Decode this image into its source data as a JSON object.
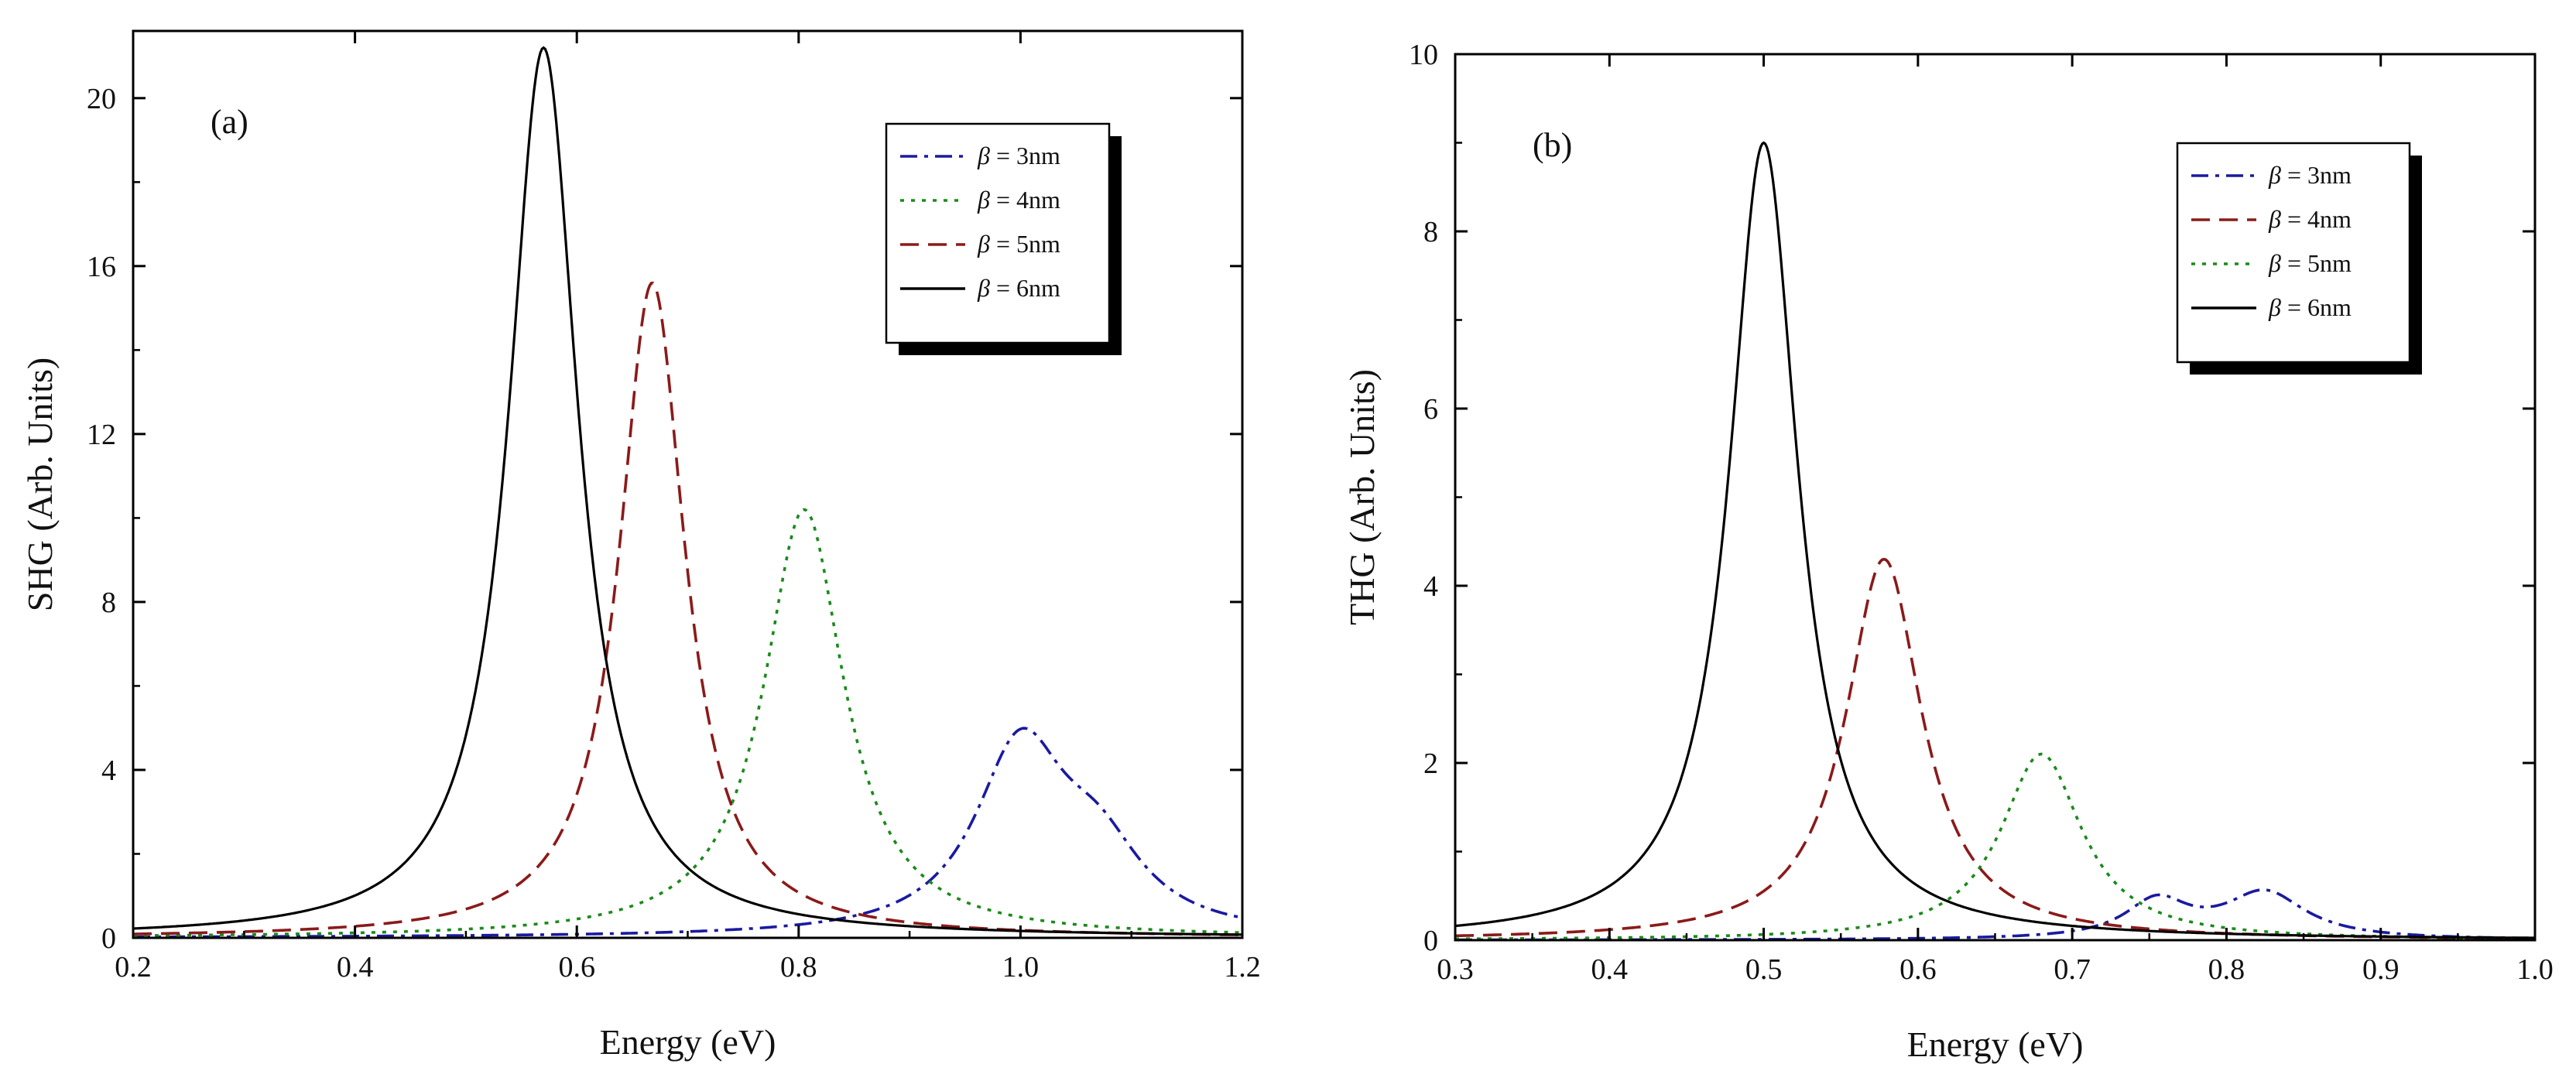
{
  "chart_data": [
    {
      "type": "line",
      "panel_label": "(a)",
      "xlabel": "Energy (eV)",
      "ylabel": "SHG (Arb. Units)",
      "xlim": [
        0.2,
        1.2
      ],
      "ylim": [
        0,
        21.6
      ],
      "xticks": [
        0.2,
        0.4,
        0.6,
        0.8,
        1.0,
        1.2
      ],
      "xtick_labels": [
        "0.2",
        "0.4",
        "0.6",
        "0.8",
        "1.0",
        "1.2"
      ],
      "yticks": [
        0,
        4,
        8,
        12,
        16,
        20
      ],
      "ytick_labels": [
        "0",
        "4",
        "8",
        "12",
        "16",
        "20"
      ],
      "grid": false,
      "legend_position": "top-right",
      "series": [
        {
          "name": "β = 3nm",
          "legend_symbol": "β",
          "legend_text": " = 3nm",
          "color": "#1a1aa0",
          "dash": "dashdot",
          "peaks": [
            {
              "x0": 1.0,
              "gamma": 0.05,
              "amp": 4.4
            },
            {
              "x0": 1.07,
              "gamma": 0.05,
              "amp": 1.7
            }
          ]
        },
        {
          "name": "β = 4nm",
          "legend_symbol": "β",
          "legend_text": " = 4nm",
          "color": "#1a8a1a",
          "dash": "dotted",
          "peaks": [
            {
              "x0": 0.805,
              "gamma": 0.044,
              "amp": 10.2
            }
          ]
        },
        {
          "name": "β = 5nm",
          "legend_symbol": "β",
          "legend_text": " = 5nm",
          "color": "#8b1a1a",
          "dash": "dashed",
          "peaks": [
            {
              "x0": 0.668,
              "gamma": 0.036,
              "amp": 15.6
            }
          ]
        },
        {
          "name": "β = 6nm",
          "legend_symbol": "β",
          "legend_text": " = 6nm",
          "color": "#000000",
          "dash": "solid",
          "peaks": [
            {
              "x0": 0.57,
              "gamma": 0.038,
              "amp": 21.2
            }
          ]
        }
      ]
    },
    {
      "type": "line",
      "panel_label": "(b)",
      "xlabel": "Energy (eV)",
      "ylabel": "THG (Arb. Units)",
      "xlim": [
        0.3,
        1.0
      ],
      "ylim": [
        0,
        10
      ],
      "xticks": [
        0.3,
        0.4,
        0.5,
        0.6,
        0.7,
        0.8,
        0.9,
        1.0
      ],
      "xtick_labels": [
        "0.3",
        "0.4",
        "0.5",
        "0.6",
        "0.7",
        "0.8",
        "0.9",
        "1.0"
      ],
      "yticks": [
        0,
        2,
        4,
        6,
        8,
        10
      ],
      "ytick_labels": [
        "0",
        "2",
        "4",
        "6",
        "8",
        "10"
      ],
      "grid": false,
      "legend_position": "top-right",
      "series": [
        {
          "name": "β = 3nm",
          "legend_symbol": "β",
          "legend_text": " = 3nm",
          "color": "#1a1aa0",
          "dash": "dashdot",
          "peaks": [
            {
              "x0": 0.755,
              "gamma": 0.025,
              "amp": 0.42
            },
            {
              "x0": 0.825,
              "gamma": 0.032,
              "amp": 0.52
            }
          ]
        },
        {
          "name": "β = 4nm",
          "legend_symbol": "β",
          "legend_text": " = 4nm",
          "color": "#8b1a1a",
          "dash": "dashed",
          "peaks": [
            {
              "x0": 0.578,
              "gamma": 0.03,
              "amp": 4.3
            }
          ]
        },
        {
          "name": "β = 5nm",
          "legend_symbol": "β",
          "legend_text": " = 5nm",
          "color": "#1a8a1a",
          "dash": "dotted",
          "peaks": [
            {
              "x0": 0.68,
              "gamma": 0.032,
              "amp": 2.1
            }
          ]
        },
        {
          "name": "β = 6nm",
          "legend_symbol": "β",
          "legend_text": " = 6nm",
          "color": "#000000",
          "dash": "solid",
          "peaks": [
            {
              "x0": 0.5,
              "gamma": 0.027,
              "amp": 9.0
            }
          ]
        }
      ]
    }
  ]
}
